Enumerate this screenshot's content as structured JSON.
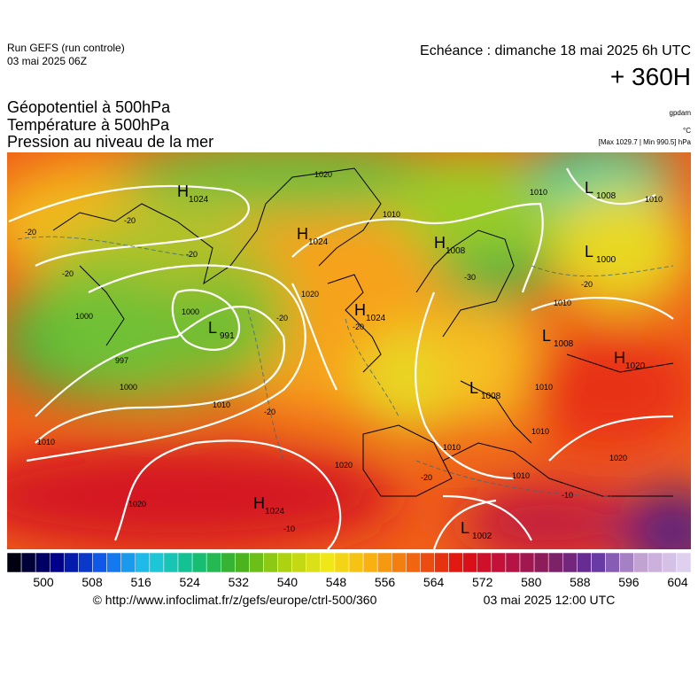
{
  "header": {
    "run": "Run GEFS (run controle)",
    "run_date": "03 mai 2025 06Z",
    "echeance": "Echéance : dimanche 18 mai 2025 6h UTC",
    "lead": "+ 360H"
  },
  "fields": [
    "Géopotentiel à 500hPa",
    "Température à 500hPa",
    "Pression au niveau de la mer"
  ],
  "units": {
    "geopotential": "gpdam",
    "temperature": "°C",
    "pressure": "[Max 1029.7 | Min 990.5] hPa"
  },
  "pressure_centers": [
    {
      "type": "H",
      "value": 1024
    },
    {
      "type": "H",
      "value": 1024
    },
    {
      "type": "H",
      "value": 1008
    },
    {
      "type": "L",
      "value": 1008
    },
    {
      "type": "L",
      "value": 1000
    },
    {
      "type": "L",
      "value": 991
    },
    {
      "type": "H",
      "value": 1024
    },
    {
      "type": "L",
      "value": 1008
    },
    {
      "type": "H",
      "value": 1020
    },
    {
      "type": "L",
      "value": 1008
    },
    {
      "type": "H",
      "value": 1024
    },
    {
      "type": "L",
      "value": 1002
    }
  ],
  "isobar_labels": [
    1020,
    1000,
    1010,
    1020,
    1000,
    1010,
    1010,
    1000,
    997,
    1010,
    1010,
    1020,
    1020,
    1010,
    1010,
    1020,
    1010,
    1010,
    1010
  ],
  "temperature_labels": [
    -20,
    -20,
    -20,
    -20,
    -20,
    -30,
    -20,
    -20,
    -20,
    -10,
    -20,
    -10
  ],
  "colorbar": {
    "ticks": [
      500,
      508,
      516,
      524,
      532,
      540,
      548,
      556,
      564,
      572,
      580,
      588,
      596,
      604
    ]
  },
  "footer": {
    "source": "© http://www.infoclimat.fr/z/gefs/europe/ctrl-500/360",
    "issued": "03 mai 2025 12:00 UTC"
  }
}
